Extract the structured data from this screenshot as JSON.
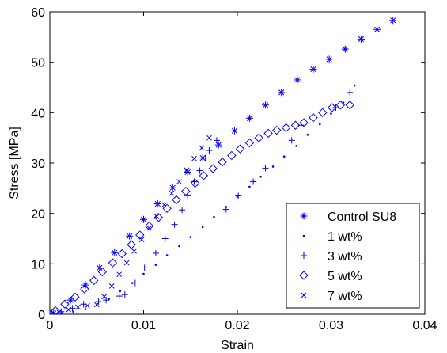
{
  "chart_data": {
    "type": "scatter",
    "title": "",
    "xlabel": "Strain",
    "ylabel": "Stress [MPa]",
    "xlim": [
      0,
      0.04
    ],
    "ylim": [
      0,
      60
    ],
    "xticks": [
      0,
      0.01,
      0.02,
      0.03,
      0.04
    ],
    "xtick_labels": [
      "0",
      "0.01",
      "0.02",
      "0.03",
      "0.04"
    ],
    "yticks": [
      0,
      10,
      20,
      30,
      40,
      50,
      60
    ],
    "ytick_labels": [
      "0",
      "10",
      "20",
      "30",
      "40",
      "50",
      "60"
    ],
    "grid": false,
    "legend_position": "bottom-right",
    "marker_color": "#0000ff",
    "series": [
      {
        "name": "Control SU8",
        "marker": "asterisk",
        "x": [
          0.0,
          0.0004,
          0.0022,
          0.0038,
          0.0053,
          0.0069,
          0.0085,
          0.01,
          0.0115,
          0.0131,
          0.0147,
          0.0163,
          0.018,
          0.0197,
          0.0213,
          0.023,
          0.0247,
          0.0264,
          0.0281,
          0.0298,
          0.0315,
          0.0332,
          0.0349,
          0.0366
        ],
        "y": [
          0.0,
          0.2,
          2.8,
          5.8,
          9.2,
          12.2,
          15.5,
          18.8,
          21.9,
          25.1,
          28.2,
          31.0,
          33.6,
          36.4,
          38.9,
          41.5,
          44.0,
          46.5,
          48.6,
          50.6,
          52.6,
          54.6,
          56.5,
          58.3
        ]
      },
      {
        "name": "1 wt%",
        "marker": "dot",
        "x": [
          0.0,
          0.0013,
          0.0025,
          0.0038,
          0.005,
          0.0063,
          0.0075,
          0.0088,
          0.01,
          0.0113,
          0.0125,
          0.0138,
          0.015,
          0.0163,
          0.0175,
          0.0188,
          0.02,
          0.0213,
          0.0225,
          0.0238,
          0.025,
          0.0263,
          0.0275,
          0.0288,
          0.03,
          0.0313,
          0.0325
        ],
        "y": [
          0.0,
          0.2,
          0.5,
          1.0,
          1.8,
          3.0,
          4.6,
          6.2,
          8.0,
          9.8,
          11.7,
          13.5,
          15.3,
          17.3,
          19.3,
          21.3,
          23.3,
          25.3,
          27.3,
          29.3,
          31.3,
          33.4,
          35.6,
          37.7,
          39.8,
          42.0,
          45.4
        ]
      },
      {
        "name": "3 wt%",
        "marker": "plus",
        "x": [
          0.0,
          0.0012,
          0.0024,
          0.0036,
          0.0052,
          0.006,
          0.0074,
          0.008,
          0.0091,
          0.0101,
          0.0113,
          0.0123,
          0.0133,
          0.0141,
          0.0147,
          0.0154,
          0.016,
          0.0166,
          0.017,
          0.0178,
          0.0188,
          0.0201,
          0.0217,
          0.023,
          0.0258,
          0.0268,
          0.0305,
          0.032
        ],
        "y": [
          0.0,
          0.5,
          1.2,
          2.0,
          2.5,
          2.8,
          3.6,
          3.9,
          6.2,
          9.2,
          12.1,
          15.0,
          17.8,
          20.7,
          23.5,
          26.3,
          28.5,
          31.0,
          32.5,
          34.5,
          20.8,
          23.5,
          26.3,
          29.0,
          34.5,
          37.5,
          41.0,
          44.0
        ]
      },
      {
        "name": "5 wt%",
        "marker": "diamond",
        "x": [
          0.0,
          0.0006,
          0.0016,
          0.0027,
          0.0037,
          0.0047,
          0.0056,
          0.0067,
          0.0077,
          0.0087,
          0.0096,
          0.0106,
          0.0116,
          0.0125,
          0.0135,
          0.0145,
          0.0155,
          0.0164,
          0.0174,
          0.0184,
          0.0194,
          0.0203,
          0.0213,
          0.0223,
          0.0233,
          0.0242,
          0.0252,
          0.0262,
          0.0271,
          0.0281,
          0.0291,
          0.0301,
          0.031,
          0.032
        ],
        "y": [
          0.0,
          0.7,
          2.0,
          3.4,
          5.0,
          6.7,
          8.4,
          10.2,
          12.0,
          13.8,
          15.7,
          17.5,
          19.2,
          21.0,
          22.7,
          24.4,
          26.0,
          27.5,
          28.9,
          30.2,
          31.5,
          32.8,
          34.0,
          35.0,
          35.9,
          36.5,
          37.0,
          37.5,
          38.0,
          39.0,
          40.0,
          41.0,
          41.5,
          41.5
        ]
      },
      {
        "name": "7 wt%",
        "marker": "x",
        "x": [
          0.0,
          0.001,
          0.002,
          0.003,
          0.004,
          0.005,
          0.0058,
          0.0066,
          0.0074,
          0.0082,
          0.009,
          0.0098,
          0.0106,
          0.0114,
          0.0122,
          0.013,
          0.0138,
          0.0146,
          0.0154,
          0.0162,
          0.017
        ],
        "y": [
          0.0,
          0.4,
          0.9,
          1.4,
          1.7,
          1.9,
          3.5,
          5.6,
          7.9,
          10.2,
          12.5,
          14.8,
          17.1,
          19.4,
          21.7,
          24.0,
          26.3,
          28.6,
          30.9,
          33.0,
          35.0
        ]
      }
    ]
  }
}
